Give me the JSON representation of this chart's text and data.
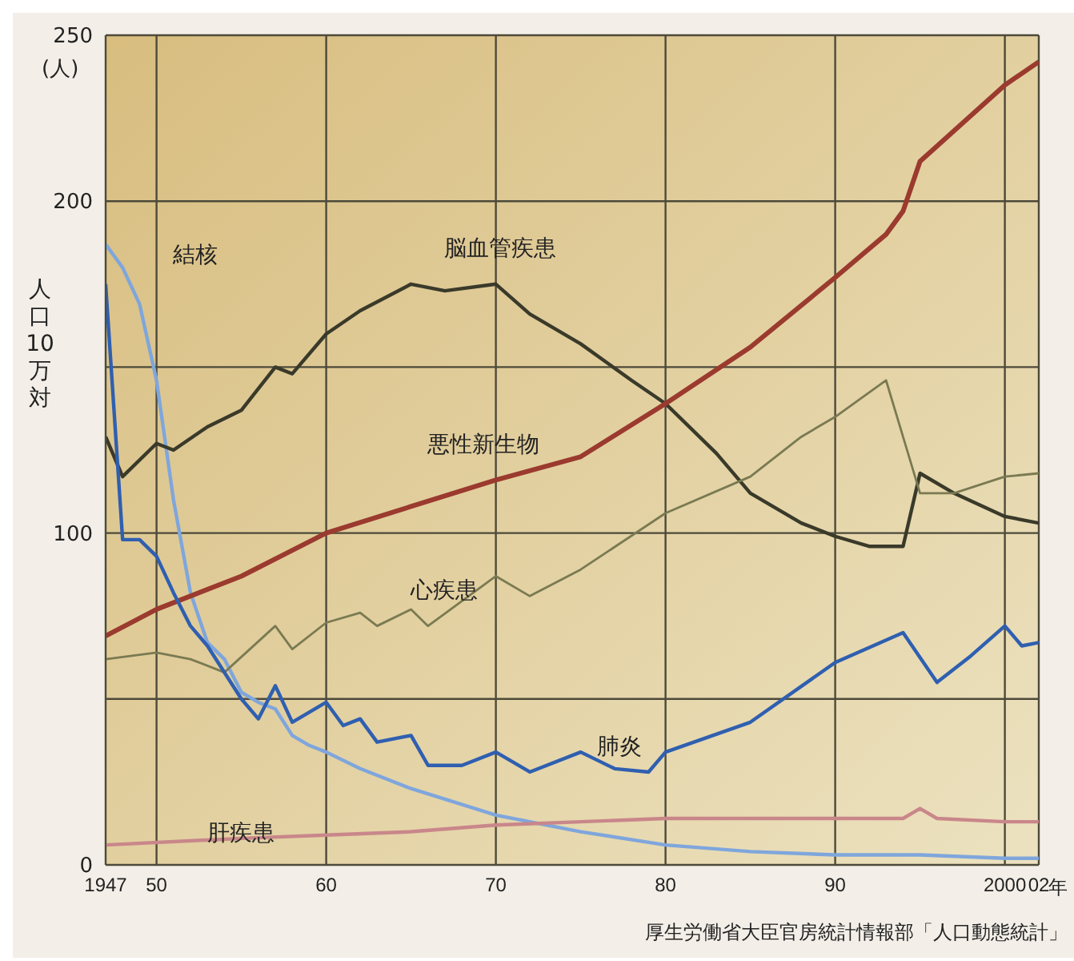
{
  "chart_data": {
    "type": "line",
    "ylabel": "人口10万対",
    "xlim": [
      1947,
      2002
    ],
    "xticks": [
      {
        "value": 1947,
        "label": "1947"
      },
      {
        "value": 1950,
        "label": "50"
      },
      {
        "value": 1960,
        "label": "60"
      },
      {
        "value": 1970,
        "label": "70"
      },
      {
        "value": 1980,
        "label": "80"
      },
      {
        "value": 1990,
        "label": "90"
      },
      {
        "value": 2000,
        "label": "2000"
      },
      {
        "value": 2002,
        "label": "02"
      }
    ],
    "xlabel": "年",
    "ylim": [
      0,
      250
    ],
    "yticks": [
      0,
      {
        "value": 50,
        "label": null
      },
      100,
      {
        "value": 150,
        "label": null
      },
      200,
      250
    ],
    "grid": true,
    "legend": false,
    "marker": "none",
    "annotations": [
      "(人)",
      "厚生労働省大臣官房統計情報部「人口動態統計」"
    ],
    "series": [
      {
        "name": "結核",
        "color": "#7fa6dc",
        "x": [
          1947,
          1948,
          1949,
          1950,
          1951,
          1952,
          1953,
          1954,
          1955,
          1956,
          1957,
          1958,
          1959,
          1960,
          1962,
          1965,
          1970,
          1975,
          1980,
          1985,
          1990,
          1995,
          2000,
          2002
        ],
        "values": [
          187,
          180,
          169,
          146,
          110,
          82,
          67,
          62,
          52,
          49,
          47,
          39,
          36,
          34,
          29,
          23,
          15,
          10,
          6,
          4,
          3,
          3,
          2,
          2
        ]
      },
      {
        "name": "脳血管疾患",
        "color": "#3a3a2a",
        "x": [
          1947,
          1948,
          1950,
          1951,
          1953,
          1955,
          1957,
          1958,
          1960,
          1962,
          1965,
          1967,
          1970,
          1972,
          1975,
          1978,
          1980,
          1983,
          1985,
          1988,
          1990,
          1992,
          1994,
          1995,
          1997,
          2000,
          2002
        ],
        "values": [
          129,
          117,
          127,
          125,
          132,
          137,
          150,
          148,
          160,
          167,
          175,
          173,
          175,
          166,
          157,
          146,
          139,
          124,
          112,
          103,
          99,
          96,
          96,
          118,
          112,
          105,
          103
        ]
      },
      {
        "name": "悪性新生物",
        "color": "#9b3a2e",
        "x": [
          1947,
          1950,
          1955,
          1960,
          1965,
          1970,
          1975,
          1980,
          1985,
          1990,
          1993,
          1994,
          1995,
          2000,
          2002
        ],
        "values": [
          69,
          77,
          87,
          100,
          108,
          116,
          123,
          139,
          156,
          177,
          190,
          197,
          212,
          235,
          242
        ]
      },
      {
        "name": "心疾患",
        "color": "#7a7a52",
        "x": [
          1947,
          1950,
          1952,
          1954,
          1957,
          1958,
          1960,
          1962,
          1963,
          1965,
          1966,
          1970,
          1972,
          1975,
          1980,
          1985,
          1988,
          1990,
          1993,
          1994,
          1995,
          1997,
          2000,
          2002
        ],
        "values": [
          62,
          64,
          62,
          58,
          72,
          65,
          73,
          76,
          72,
          77,
          72,
          87,
          81,
          89,
          106,
          117,
          129,
          135,
          146,
          129,
          112,
          112,
          117,
          118
        ]
      },
      {
        "name": "肺炎",
        "color": "#2f5fb0",
        "x": [
          1947,
          1948,
          1949,
          1950,
          1951,
          1952,
          1953,
          1955,
          1956,
          1957,
          1958,
          1960,
          1961,
          1962,
          1963,
          1965,
          1966,
          1968,
          1970,
          1972,
          1975,
          1977,
          1979,
          1980,
          1985,
          1990,
          1994,
          1996,
          1998,
          2000,
          2001,
          2002
        ],
        "values": [
          175,
          98,
          98,
          93,
          82,
          72,
          66,
          50,
          44,
          54,
          43,
          49,
          42,
          44,
          37,
          39,
          30,
          30,
          34,
          28,
          34,
          29,
          28,
          34,
          43,
          61,
          70,
          55,
          63,
          72,
          66,
          67
        ]
      },
      {
        "name": "肝疾患",
        "color": "#c9878a",
        "x": [
          1947,
          1955,
          1960,
          1965,
          1970,
          1975,
          1980,
          1985,
          1990,
          1994,
          1995,
          1996,
          2000,
          2002
        ],
        "values": [
          6,
          8,
          9,
          10,
          12,
          13,
          14,
          14,
          14,
          14,
          17,
          14,
          13,
          13
        ]
      }
    ]
  }
}
